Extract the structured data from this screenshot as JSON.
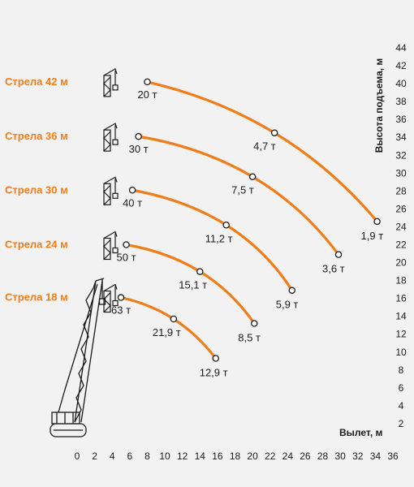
{
  "colors": {
    "background": "#f2f2f2",
    "curve": "#ee7d1a",
    "boom_label": "#ee7d1a",
    "text": "#1a1a1a",
    "point_fill": "#ffffff"
  },
  "icons": {
    "boom_config": "mini-boom-icon",
    "crane": "crawler-crane-icon"
  },
  "chart_data": {
    "type": "line",
    "xlabel": "Вылет, м",
    "ylabel": "Высота подъема, м",
    "xlim": [
      0,
      36
    ],
    "ylim": [
      0,
      44
    ],
    "x_ticks": [
      "0",
      "2",
      "4",
      "6",
      "8",
      "10",
      "12",
      "14",
      "16",
      "18",
      "20",
      "22",
      "24",
      "26",
      "28",
      "30",
      "32",
      "34",
      "36"
    ],
    "y_ticks": [
      "2",
      "4",
      "6",
      "8",
      "10",
      "12",
      "14",
      "16",
      "18",
      "20",
      "22",
      "24",
      "26",
      "28",
      "30",
      "32",
      "34",
      "36",
      "38",
      "40",
      "42",
      "44"
    ],
    "grid": false,
    "series": [
      {
        "name": "Стрела 42 м",
        "points": [
          {
            "x": 8,
            "y": 40.2,
            "label": "20 т"
          },
          {
            "x": 22.5,
            "y": 34.5,
            "label": "4,7 т"
          },
          {
            "x": 34.2,
            "y": 24.6,
            "label": "1,9 т"
          }
        ]
      },
      {
        "name": "Стрела 36 м",
        "points": [
          {
            "x": 7,
            "y": 34.1,
            "label": "30 т"
          },
          {
            "x": 20,
            "y": 29.6,
            "label": "7,5 т"
          },
          {
            "x": 29.8,
            "y": 20.9,
            "label": "3,6 т"
          }
        ]
      },
      {
        "name": "Стрела 30 м",
        "points": [
          {
            "x": 6.3,
            "y": 28.1,
            "label": "40 т"
          },
          {
            "x": 17,
            "y": 24.2,
            "label": "11,2 т"
          },
          {
            "x": 24.5,
            "y": 16.9,
            "label": "5,9 т"
          }
        ]
      },
      {
        "name": "Стрела 24 м",
        "points": [
          {
            "x": 5.6,
            "y": 22.0,
            "label": "50 т"
          },
          {
            "x": 14,
            "y": 19.0,
            "label": "15,1 т"
          },
          {
            "x": 20.2,
            "y": 13.2,
            "label": "8,5 т"
          }
        ]
      },
      {
        "name": "Стрела 18 м",
        "points": [
          {
            "x": 5,
            "y": 16.1,
            "label": "63 т"
          },
          {
            "x": 11,
            "y": 13.7,
            "label": "21,9 т"
          },
          {
            "x": 15.8,
            "y": 9.3,
            "label": "12,9 т"
          }
        ]
      }
    ]
  }
}
